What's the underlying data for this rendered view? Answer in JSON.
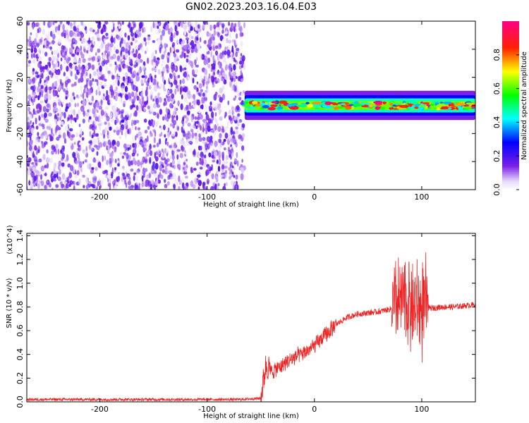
{
  "figure_title": "GN02.2023.203.16.04.E03",
  "chart_data": [
    {
      "type": "heatmap",
      "title": "",
      "xlabel": "Height of straight line (km)",
      "ylabel": "Frequency (Hz)",
      "xlim": [
        -268,
        150
      ],
      "ylim": [
        -60,
        60
      ],
      "x_ticks": [
        "-200",
        "-100",
        "0",
        "100"
      ],
      "y_ticks": [
        "-60",
        "-40",
        "-20",
        "0",
        "20",
        "40",
        "60"
      ],
      "colorbar": {
        "label": "Normalized spectral amplitude",
        "range": [
          0,
          1
        ],
        "ticks": [
          "0.0",
          "0.2",
          "0.4",
          "0.6",
          "0.8"
        ]
      },
      "regions": [
        {
          "x_range": [
            -268,
            -65
          ],
          "freq_range": [
            -60,
            60
          ],
          "amplitude_range": [
            0.02,
            0.2
          ]
        },
        {
          "x_range": [
            -65,
            150
          ],
          "freq_center": 0,
          "freq_halfwidth": 4,
          "amplitude_range": [
            0.3,
            1.0
          ]
        }
      ],
      "grid": false
    },
    {
      "type": "line",
      "title": "",
      "xlabel": "Height of straight line (km)",
      "ylabel": "SNR (10 * v/v)",
      "y_multiplier": "(x10^4)",
      "xlim": [
        -268,
        150
      ],
      "ylim": [
        0,
        1.42
      ],
      "x_ticks": [
        "-200",
        "-100",
        "0",
        "100"
      ],
      "y_ticks": [
        "0.0",
        "0.2",
        "0.4",
        "0.6",
        "0.8",
        "1.0",
        "1.2",
        "1.4"
      ],
      "series": [
        {
          "color": "#ee2222",
          "x": [
            -268,
            -200,
            -150,
            -100,
            -70,
            -50,
            -45,
            -40,
            -30,
            -20,
            -10,
            0,
            10,
            20,
            30,
            40,
            50,
            60,
            70,
            75,
            80,
            85,
            90,
            95,
            100,
            105,
            110,
            120,
            130,
            140,
            150
          ],
          "y": [
            0.02,
            0.02,
            0.02,
            0.02,
            0.02,
            0.03,
            0.32,
            0.25,
            0.31,
            0.37,
            0.41,
            0.47,
            0.56,
            0.65,
            0.71,
            0.74,
            0.75,
            0.76,
            0.78,
            0.8,
            0.84,
            0.86,
            0.8,
            0.78,
            0.78,
            0.79,
            0.79,
            0.8,
            0.8,
            0.81,
            0.82
          ]
        }
      ],
      "grid": false
    }
  ]
}
